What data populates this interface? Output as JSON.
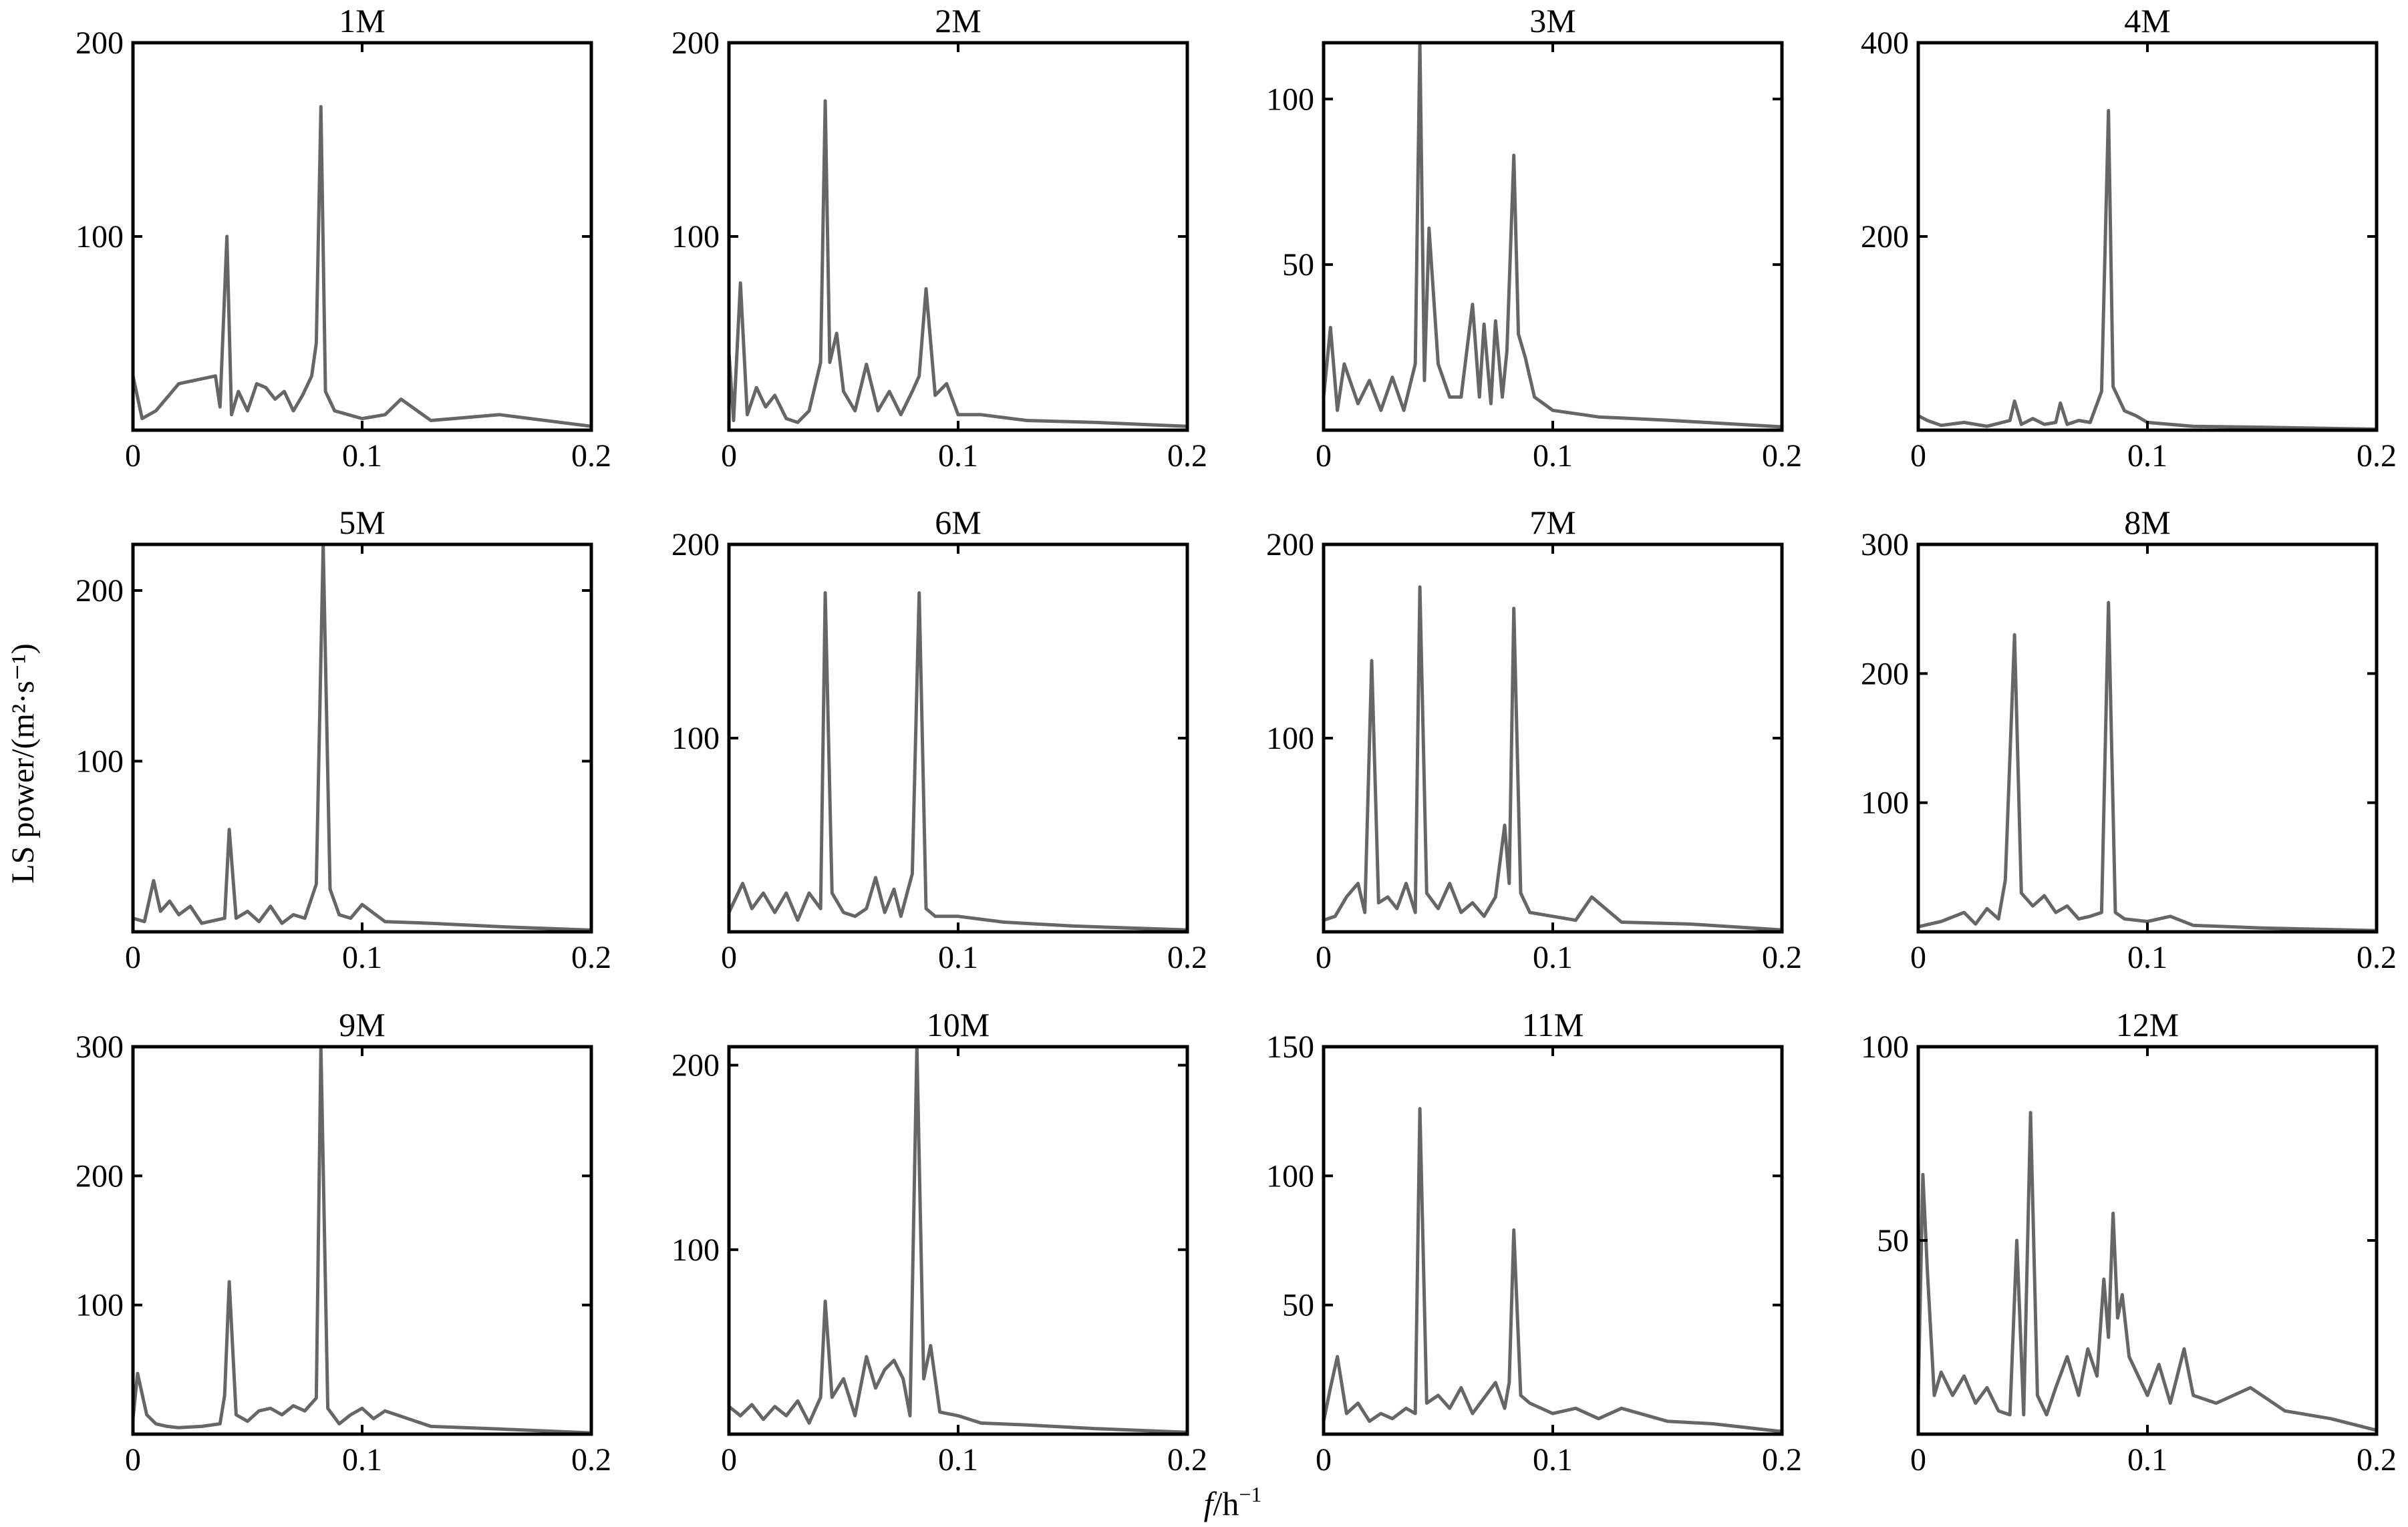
{
  "figure": {
    "ylabel": "LS power/(m²·s⁻¹)",
    "xlabel_italic": "f",
    "xlabel_rest": "/h",
    "xlabel_sup": "−1"
  },
  "chart_data": [
    {
      "type": "line",
      "title": "1M",
      "xlim": [
        0,
        0.2
      ],
      "ylim": [
        0,
        200
      ],
      "yticks": [
        100,
        200
      ],
      "xticks": [
        0,
        0.1,
        0.2
      ],
      "xtick_labels": [
        "0",
        "0.1",
        "0.2"
      ],
      "x": [
        0,
        0.004,
        0.01,
        0.02,
        0.036,
        0.038,
        0.041,
        0.043,
        0.046,
        0.05,
        0.054,
        0.058,
        0.062,
        0.066,
        0.07,
        0.074,
        0.078,
        0.08,
        0.082,
        0.084,
        0.088,
        0.1,
        0.11,
        0.117,
        0.13,
        0.16,
        0.2
      ],
      "values": [
        28,
        6,
        10,
        24,
        28,
        12,
        100,
        8,
        20,
        10,
        24,
        22,
        16,
        20,
        10,
        18,
        28,
        45,
        167,
        20,
        10,
        6,
        8,
        16,
        5,
        8,
        2
      ]
    },
    {
      "type": "line",
      "title": "2M",
      "xlim": [
        0,
        0.2
      ],
      "ylim": [
        0,
        200
      ],
      "yticks": [
        100,
        200
      ],
      "xticks": [
        0,
        0.1,
        0.2
      ],
      "xtick_labels": [
        "0",
        "0.1",
        "0.2"
      ],
      "x": [
        0,
        0.002,
        0.005,
        0.008,
        0.012,
        0.016,
        0.02,
        0.025,
        0.03,
        0.035,
        0.04,
        0.042,
        0.044,
        0.047,
        0.05,
        0.055,
        0.06,
        0.065,
        0.07,
        0.075,
        0.08,
        0.083,
        0.086,
        0.09,
        0.095,
        0.1,
        0.11,
        0.13,
        0.16,
        0.2
      ],
      "values": [
        40,
        5,
        76,
        8,
        22,
        12,
        18,
        6,
        4,
        10,
        35,
        170,
        35,
        50,
        20,
        10,
        34,
        10,
        20,
        8,
        20,
        28,
        73,
        18,
        24,
        8,
        8,
        5,
        4,
        2
      ]
    },
    {
      "type": "line",
      "title": "3M",
      "xlim": [
        0,
        0.2
      ],
      "ylim": [
        0,
        117
      ],
      "yticks": [
        50,
        100
      ],
      "xticks": [
        0,
        0.1,
        0.2
      ],
      "xtick_labels": [
        "0",
        "0.1",
        "0.2"
      ],
      "x": [
        0,
        0.003,
        0.006,
        0.009,
        0.015,
        0.02,
        0.025,
        0.03,
        0.035,
        0.04,
        0.042,
        0.044,
        0.046,
        0.05,
        0.055,
        0.06,
        0.065,
        0.068,
        0.07,
        0.073,
        0.075,
        0.078,
        0.08,
        0.083,
        0.085,
        0.088,
        0.092,
        0.1,
        0.12,
        0.15,
        0.2
      ],
      "values": [
        10,
        31,
        6,
        20,
        8,
        15,
        6,
        16,
        6,
        20,
        117,
        15,
        61,
        20,
        10,
        10,
        38,
        10,
        32,
        8,
        33,
        10,
        24,
        83,
        29,
        22,
        10,
        6,
        4,
        3,
        1
      ]
    },
    {
      "type": "line",
      "title": "4M",
      "xlim": [
        0,
        0.2
      ],
      "ylim": [
        0,
        400
      ],
      "yticks": [
        200,
        400
      ],
      "xticks": [
        0,
        0.1,
        0.2
      ],
      "xtick_labels": [
        "0",
        "0.1",
        "0.2"
      ],
      "x": [
        0,
        0.004,
        0.01,
        0.02,
        0.03,
        0.04,
        0.042,
        0.045,
        0.05,
        0.055,
        0.06,
        0.062,
        0.065,
        0.07,
        0.075,
        0.08,
        0.083,
        0.085,
        0.09,
        0.095,
        0.1,
        0.12,
        0.15,
        0.2
      ],
      "values": [
        15,
        10,
        5,
        8,
        4,
        10,
        30,
        6,
        12,
        6,
        8,
        28,
        6,
        10,
        8,
        40,
        330,
        45,
        20,
        15,
        8,
        4,
        3,
        1
      ]
    },
    {
      "type": "line",
      "title": "5M",
      "xlim": [
        0,
        0.2
      ],
      "ylim": [
        0,
        227
      ],
      "yticks": [
        100,
        200
      ],
      "xticks": [
        0,
        0.1,
        0.2
      ],
      "xtick_labels": [
        "0",
        "0.1",
        "0.2"
      ],
      "x": [
        0,
        0.005,
        0.009,
        0.012,
        0.016,
        0.02,
        0.025,
        0.03,
        0.04,
        0.042,
        0.045,
        0.05,
        0.055,
        0.06,
        0.065,
        0.07,
        0.075,
        0.08,
        0.083,
        0.086,
        0.09,
        0.095,
        0.1,
        0.11,
        0.13,
        0.16,
        0.2
      ],
      "values": [
        8,
        6,
        30,
        12,
        18,
        10,
        15,
        5,
        8,
        60,
        8,
        12,
        6,
        15,
        5,
        10,
        8,
        28,
        227,
        25,
        10,
        8,
        16,
        6,
        5,
        3,
        1
      ]
    },
    {
      "type": "line",
      "title": "6M",
      "xlim": [
        0,
        0.2
      ],
      "ylim": [
        0,
        200
      ],
      "yticks": [
        100,
        200
      ],
      "xticks": [
        0,
        0.1,
        0.2
      ],
      "xtick_labels": [
        "0",
        "0.1",
        "0.2"
      ],
      "x": [
        0,
        0.006,
        0.01,
        0.015,
        0.02,
        0.025,
        0.03,
        0.035,
        0.04,
        0.042,
        0.045,
        0.05,
        0.055,
        0.06,
        0.064,
        0.068,
        0.072,
        0.075,
        0.08,
        0.083,
        0.086,
        0.09,
        0.1,
        0.12,
        0.15,
        0.2
      ],
      "values": [
        10,
        25,
        12,
        20,
        10,
        20,
        6,
        20,
        12,
        175,
        20,
        10,
        8,
        12,
        28,
        10,
        22,
        8,
        30,
        175,
        12,
        8,
        8,
        5,
        3,
        1
      ]
    },
    {
      "type": "line",
      "title": "7M",
      "xlim": [
        0,
        0.2
      ],
      "ylim": [
        0,
        200
      ],
      "yticks": [
        100,
        200
      ],
      "xticks": [
        0,
        0.1,
        0.2
      ],
      "xtick_labels": [
        "0",
        "0.1",
        "0.2"
      ],
      "x": [
        0,
        0.005,
        0.01,
        0.015,
        0.018,
        0.021,
        0.024,
        0.028,
        0.032,
        0.036,
        0.04,
        0.042,
        0.045,
        0.05,
        0.055,
        0.06,
        0.065,
        0.07,
        0.075,
        0.079,
        0.081,
        0.083,
        0.086,
        0.09,
        0.1,
        0.11,
        0.117,
        0.13,
        0.16,
        0.2
      ],
      "values": [
        6,
        8,
        18,
        25,
        10,
        140,
        15,
        18,
        12,
        25,
        10,
        178,
        20,
        12,
        25,
        10,
        15,
        8,
        18,
        55,
        25,
        167,
        20,
        10,
        8,
        6,
        18,
        5,
        4,
        1
      ]
    },
    {
      "type": "line",
      "title": "8M",
      "xlim": [
        0,
        0.2
      ],
      "ylim": [
        0,
        300
      ],
      "yticks": [
        100,
        200,
        300
      ],
      "xticks": [
        0,
        0.1,
        0.2
      ],
      "xtick_labels": [
        "0",
        "0.1",
        "0.2"
      ],
      "x": [
        0,
        0.01,
        0.02,
        0.025,
        0.03,
        0.035,
        0.038,
        0.042,
        0.045,
        0.05,
        0.055,
        0.06,
        0.065,
        0.07,
        0.075,
        0.08,
        0.083,
        0.086,
        0.09,
        0.1,
        0.11,
        0.12,
        0.15,
        0.2
      ],
      "values": [
        4,
        8,
        15,
        6,
        18,
        10,
        40,
        230,
        30,
        20,
        28,
        15,
        20,
        10,
        12,
        15,
        255,
        15,
        10,
        8,
        12,
        5,
        3,
        1
      ]
    },
    {
      "type": "line",
      "title": "9M",
      "xlim": [
        0,
        0.2
      ],
      "ylim": [
        0,
        300
      ],
      "yticks": [
        100,
        200,
        300
      ],
      "xticks": [
        0,
        0.1,
        0.2
      ],
      "xtick_labels": [
        "0",
        "0.1",
        "0.2"
      ],
      "x": [
        0,
        0.002,
        0.006,
        0.01,
        0.015,
        0.02,
        0.03,
        0.038,
        0.04,
        0.042,
        0.045,
        0.05,
        0.055,
        0.06,
        0.065,
        0.07,
        0.075,
        0.08,
        0.082,
        0.085,
        0.09,
        0.095,
        0.1,
        0.105,
        0.11,
        0.13,
        0.16,
        0.2
      ],
      "values": [
        12,
        47,
        15,
        8,
        6,
        5,
        6,
        8,
        30,
        118,
        15,
        10,
        18,
        20,
        15,
        22,
        18,
        28,
        300,
        20,
        8,
        15,
        20,
        12,
        18,
        6,
        4,
        1
      ]
    },
    {
      "type": "line",
      "title": "10M",
      "xlim": [
        0,
        0.2
      ],
      "ylim": [
        0,
        210
      ],
      "yticks": [
        100,
        200
      ],
      "xticks": [
        0,
        0.1,
        0.2
      ],
      "xtick_labels": [
        "0",
        "0.1",
        "0.2"
      ],
      "x": [
        0,
        0.005,
        0.01,
        0.015,
        0.02,
        0.025,
        0.03,
        0.035,
        0.04,
        0.042,
        0.045,
        0.05,
        0.055,
        0.06,
        0.064,
        0.068,
        0.072,
        0.076,
        0.079,
        0.082,
        0.085,
        0.088,
        0.092,
        0.1,
        0.11,
        0.13,
        0.16,
        0.2
      ],
      "values": [
        15,
        10,
        16,
        8,
        15,
        10,
        18,
        6,
        20,
        72,
        20,
        30,
        10,
        42,
        25,
        35,
        40,
        30,
        10,
        210,
        30,
        48,
        12,
        10,
        6,
        5,
        3,
        1
      ]
    },
    {
      "type": "line",
      "title": "11M",
      "xlim": [
        0,
        0.2
      ],
      "ylim": [
        0,
        150
      ],
      "yticks": [
        50,
        100,
        150
      ],
      "xticks": [
        0,
        0.1,
        0.2
      ],
      "xtick_labels": [
        "0",
        "0.1",
        "0.2"
      ],
      "x": [
        0,
        0.003,
        0.006,
        0.01,
        0.015,
        0.02,
        0.025,
        0.03,
        0.036,
        0.04,
        0.042,
        0.045,
        0.05,
        0.055,
        0.06,
        0.065,
        0.07,
        0.075,
        0.079,
        0.081,
        0.083,
        0.086,
        0.09,
        0.1,
        0.11,
        0.12,
        0.13,
        0.15,
        0.17,
        0.2
      ],
      "values": [
        5,
        18,
        30,
        8,
        12,
        5,
        8,
        6,
        10,
        8,
        126,
        12,
        15,
        10,
        18,
        8,
        14,
        20,
        10,
        20,
        79,
        15,
        12,
        8,
        10,
        6,
        10,
        5,
        4,
        1
      ]
    },
    {
      "type": "line",
      "title": "12M",
      "xlim": [
        0,
        0.2
      ],
      "ylim": [
        0,
        100
      ],
      "yticks": [
        50,
        100
      ],
      "xticks": [
        0,
        0.1,
        0.2
      ],
      "xtick_labels": [
        "0",
        "0.1",
        "0.2"
      ],
      "x": [
        0,
        0.002,
        0.004,
        0.007,
        0.01,
        0.015,
        0.02,
        0.025,
        0.03,
        0.035,
        0.04,
        0.043,
        0.046,
        0.049,
        0.052,
        0.056,
        0.06,
        0.065,
        0.07,
        0.074,
        0.078,
        0.081,
        0.083,
        0.085,
        0.087,
        0.089,
        0.092,
        0.096,
        0.1,
        0.105,
        0.11,
        0.116,
        0.12,
        0.13,
        0.145,
        0.16,
        0.18,
        0.2
      ],
      "values": [
        10,
        67,
        42,
        10,
        16,
        10,
        15,
        8,
        12,
        6,
        5,
        50,
        5,
        83,
        10,
        5,
        12,
        20,
        10,
        22,
        15,
        40,
        25,
        57,
        30,
        36,
        20,
        15,
        10,
        18,
        8,
        22,
        10,
        8,
        12,
        6,
        4,
        1
      ]
    }
  ]
}
